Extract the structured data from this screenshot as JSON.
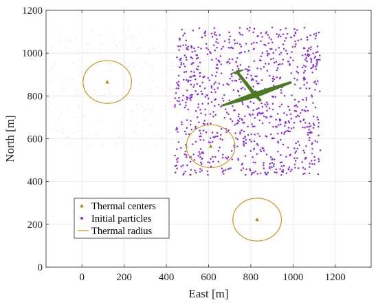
{
  "chart_data": {
    "type": "scatter",
    "xlabel": "East [m]",
    "ylabel": "North [m]",
    "xlim": [
      -170,
      1370
    ],
    "ylim": [
      0,
      1200
    ],
    "xticks": [
      0,
      200,
      400,
      600,
      800,
      1000,
      1200
    ],
    "yticks": [
      0,
      200,
      400,
      600,
      800,
      1000,
      1200
    ],
    "grid": true,
    "legend_position": "bottom-left",
    "series": [
      {
        "name": "Thermal centers",
        "marker": "triangle",
        "color": "#b8860b",
        "x": [
          120,
          610,
          830
        ],
        "y": [
          865,
          565,
          222
        ]
      },
      {
        "name": "Initial particles",
        "marker": "dot",
        "color": "#8b2be2",
        "distribution": "uniform-random",
        "count": 900,
        "x_range": [
          440,
          1130
        ],
        "y_range": [
          430,
          1120
        ]
      },
      {
        "name": "Thermal radius",
        "marker": "circle-outline",
        "color": "#c8961e",
        "centers_x": [
          120,
          610,
          830
        ],
        "centers_y": [
          865,
          565,
          222
        ],
        "radius": 100
      }
    ],
    "glider": {
      "color": "#4a7a22",
      "x": 820,
      "y": 805
    }
  }
}
